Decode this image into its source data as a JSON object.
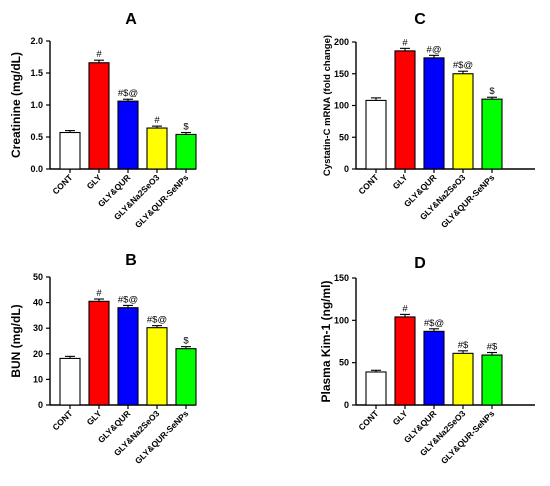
{
  "chart_data": [
    {
      "panel": "A",
      "type": "bar",
      "ylabel": "Creatinine (mg/dL)",
      "ylim": [
        0,
        2.0
      ],
      "yticks": [
        "0.0",
        "0.5",
        "1.0",
        "1.5",
        "2.0"
      ],
      "categories": [
        "CONT",
        "GLY",
        "GLY&QUR",
        "GLY&Na2SeO3",
        "GLY&QUR-SeNPs"
      ],
      "values": [
        0.57,
        1.66,
        1.06,
        0.64,
        0.54
      ],
      "errors": [
        0.03,
        0.04,
        0.03,
        0.03,
        0.03
      ],
      "annotations": [
        "",
        "#",
        "#$@",
        "#",
        "$"
      ],
      "colors": [
        "#ffffff",
        "#ff0000",
        "#0000ff",
        "#ffff00",
        "#00ff00"
      ]
    },
    {
      "panel": "C",
      "type": "bar",
      "ylabel": "Cystatin-C mRNA (fold change)",
      "ylim": [
        0,
        200
      ],
      "yticks": [
        "0",
        "50",
        "100",
        "150",
        "200"
      ],
      "categories": [
        "CONT",
        "GLY",
        "GLY&QUR",
        "GLY&Na2SeO3",
        "GLY&QUR-SeNPs"
      ],
      "values": [
        108,
        186,
        175,
        150,
        110
      ],
      "errors": [
        4,
        4,
        4,
        4,
        3
      ],
      "annotations": [
        "",
        "#",
        "#@",
        "#$@",
        "$"
      ],
      "colors": [
        "#ffffff",
        "#ff0000",
        "#0000ff",
        "#ffff00",
        "#00ff00"
      ]
    },
    {
      "panel": "B",
      "type": "bar",
      "ylabel": "BUN (mg/dL)",
      "ylim": [
        0,
        50
      ],
      "yticks": [
        "0",
        "10",
        "20",
        "30",
        "40",
        "50"
      ],
      "categories": [
        "CONT",
        "GLY",
        "GLY&QUR",
        "GLY&Na2SeO3",
        "GLY&QUR-SeNPs"
      ],
      "values": [
        18.2,
        40.5,
        38.0,
        30.2,
        22.0
      ],
      "errors": [
        0.8,
        0.9,
        0.9,
        0.8,
        0.8
      ],
      "annotations": [
        "",
        "#",
        "#$@",
        "#$@",
        "$"
      ],
      "colors": [
        "#ffffff",
        "#ff0000",
        "#0000ff",
        "#ffff00",
        "#00ff00"
      ]
    },
    {
      "panel": "D",
      "type": "bar",
      "ylabel": "Plasma Kim-1 (ng/ml)",
      "ylim": [
        0,
        150
      ],
      "yticks": [
        "0",
        "50",
        "100",
        "150"
      ],
      "categories": [
        "CONT",
        "GLY",
        "GLY&QUR",
        "GLY&Na2SeO3",
        "GLY&QUR-SeNPs"
      ],
      "values": [
        39,
        104,
        87,
        61,
        59
      ],
      "errors": [
        2,
        3,
        3,
        3,
        3
      ],
      "annotations": [
        "",
        "#",
        "#$@",
        "#$",
        "#$"
      ],
      "colors": [
        "#ffffff",
        "#ff0000",
        "#0000ff",
        "#ffff00",
        "#00ff00"
      ]
    }
  ]
}
